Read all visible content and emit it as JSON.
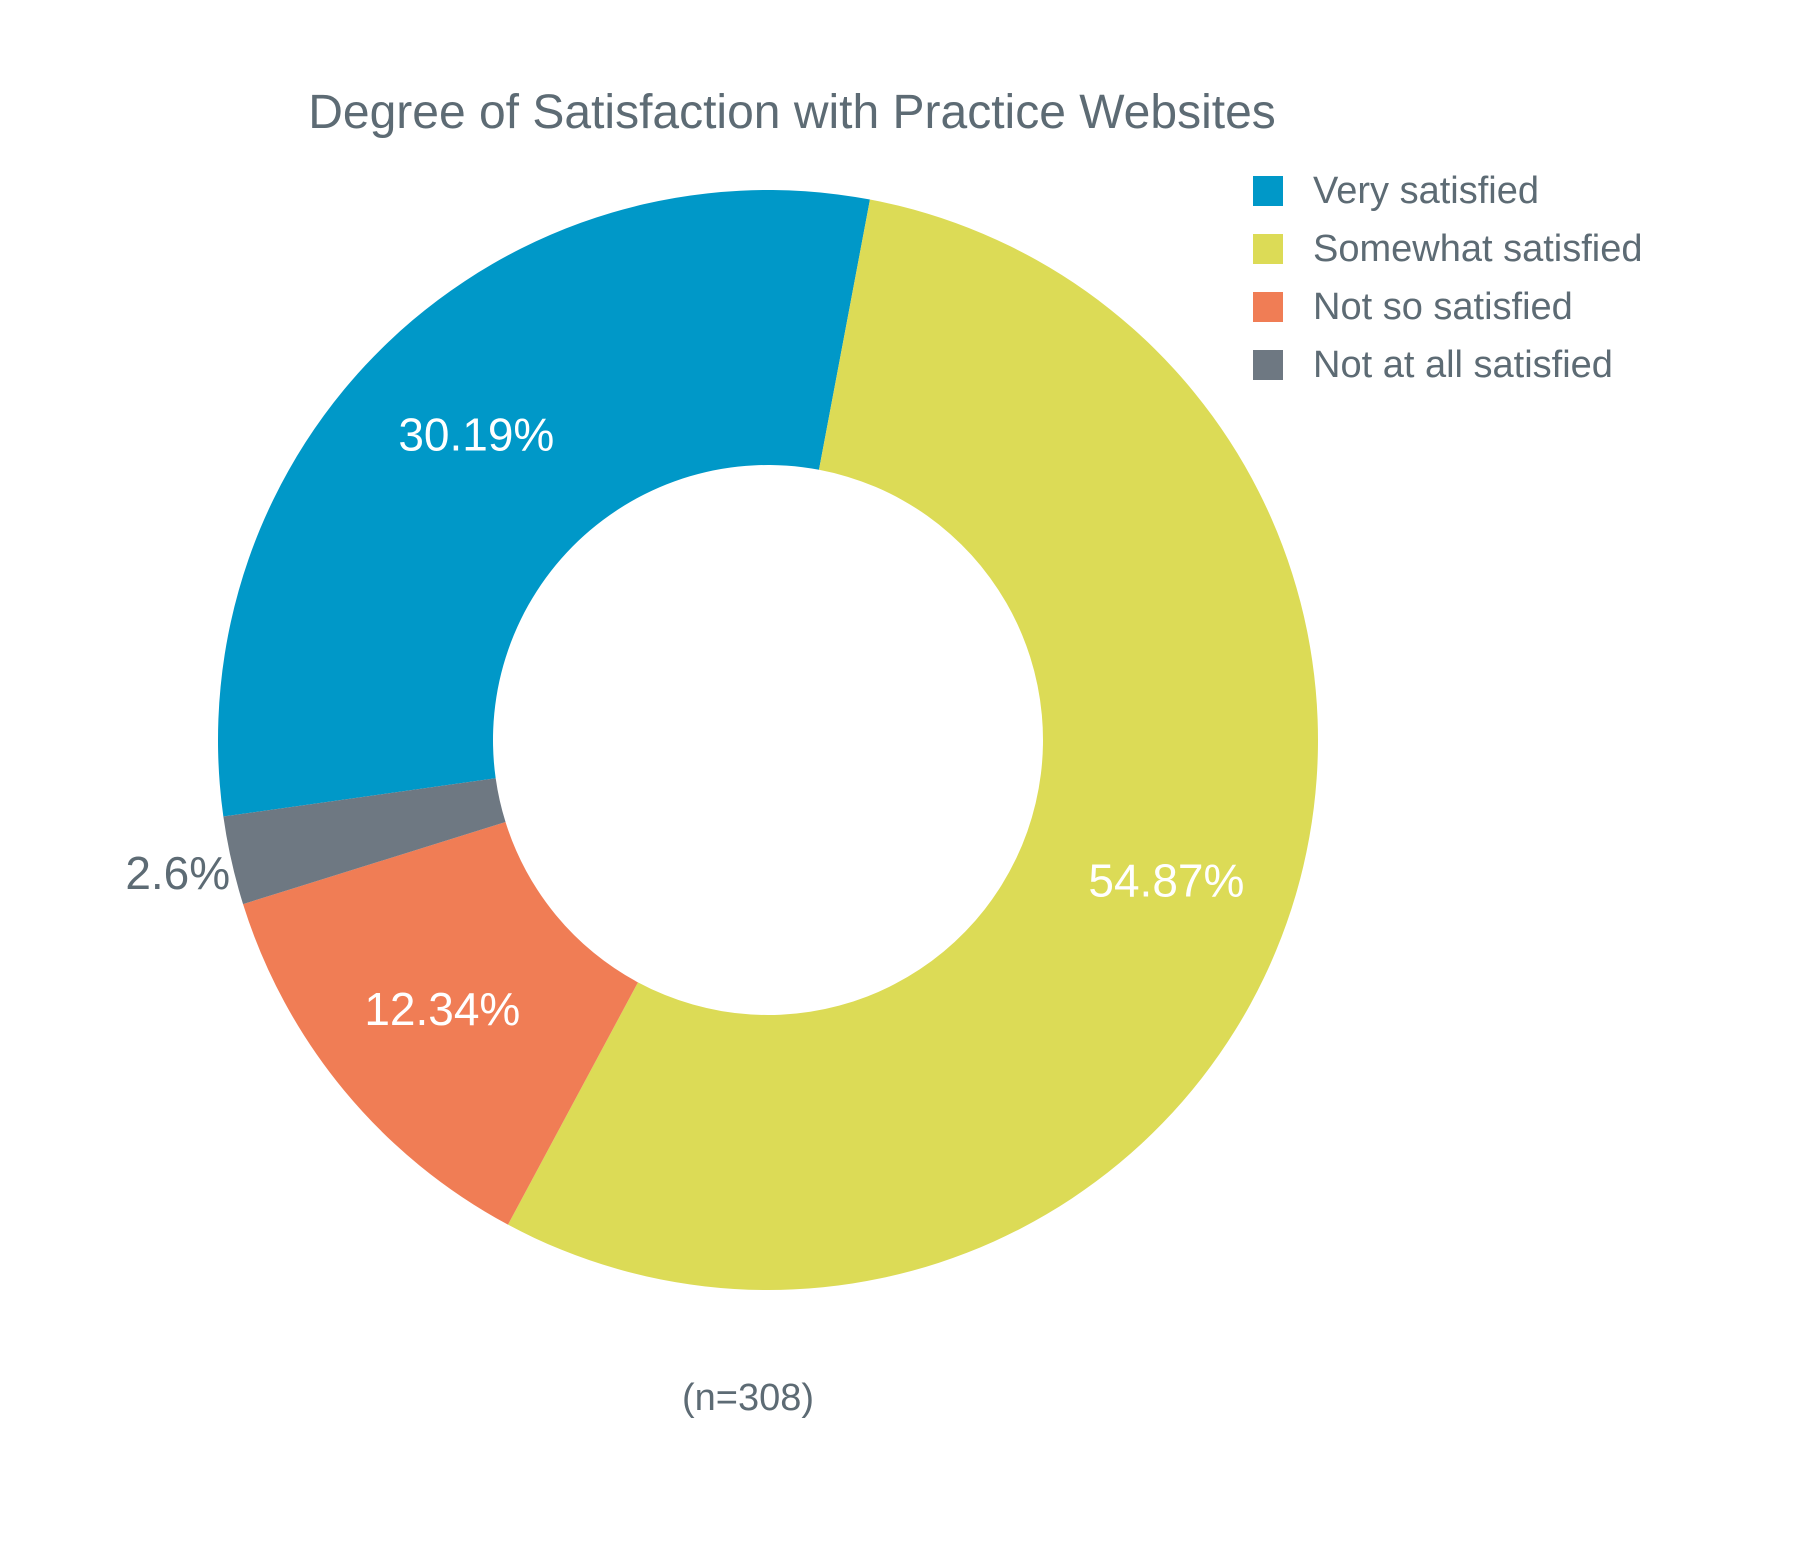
{
  "chart_data": {
    "type": "pie",
    "title": "Degree of Satisfaction with Practice Websites",
    "categories": [
      "Very satisfied",
      "Somewhat satisfied",
      "Not so satisfied",
      "Not at all satisfied"
    ],
    "values": [
      30.19,
      54.87,
      12.34,
      2.6
    ],
    "data_labels": [
      "30.19%",
      "54.87%",
      "12.34%",
      "2.6%"
    ],
    "colors": [
      "#0098c8",
      "#dcdb56",
      "#f07d55",
      "#6e7882"
    ],
    "label_colors": [
      "#ffffff",
      "#ffffff",
      "#ffffff",
      "#5d6b74"
    ],
    "donut": true,
    "legend_position": "top-right",
    "note": "(n=308)"
  }
}
